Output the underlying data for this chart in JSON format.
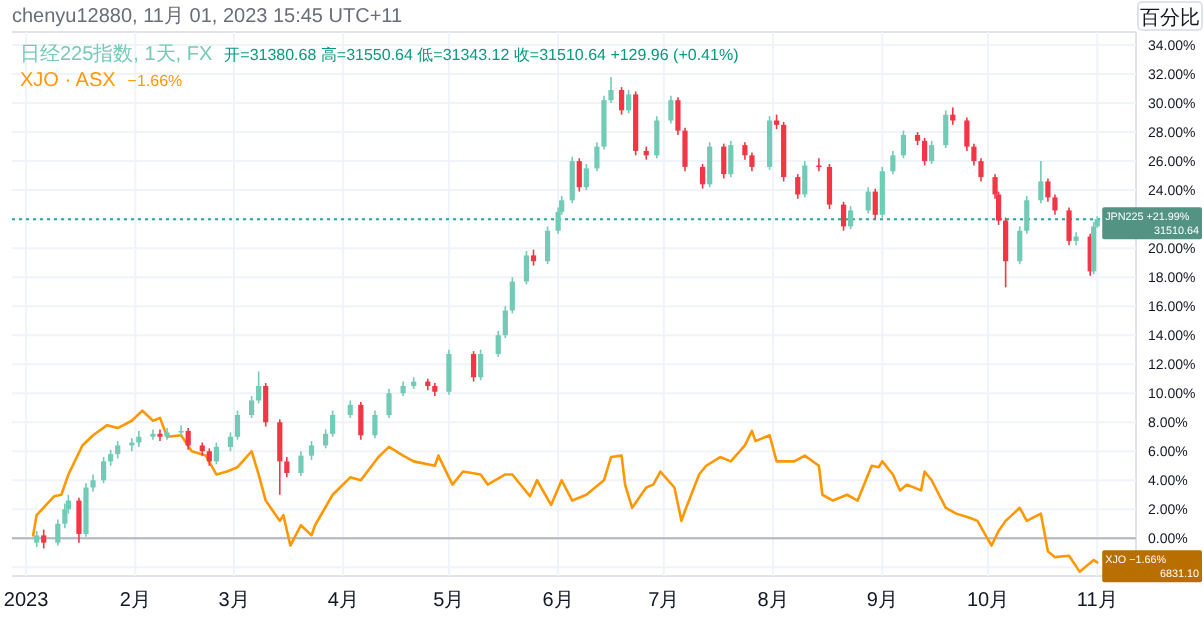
{
  "chart_data": {
    "type": "candlestick",
    "annotations": [
      "chenyu12880, 11月 01, 2023 15:45 UTC+11",
      "百分比",
      "开=31380.68 高=31550.64 低=31343.12 收=31510.64 +129.96 (+0.41%)",
      "−1.66%",
      {
        "text": "JPN225  +21.99%",
        "x": "2023-11-01",
        "y": 21.99
      },
      {
        "text": "XJO  −1.66%",
        "x": "2023-11-01",
        "y": -1.66
      },
      "31510.64",
      "6831.10"
    ],
    "xlim": [
      "2022-12-28",
      "2023-11-12"
    ],
    "xticks": [
      {
        "value": "2023-01-01",
        "label": "2023"
      },
      {
        "value": "2023-02-01",
        "label": "2月"
      },
      {
        "value": "2023-03-01",
        "label": "3月"
      },
      {
        "value": "2023-04-01",
        "label": "4月"
      },
      {
        "value": "2023-05-01",
        "label": "5月"
      },
      {
        "value": "2023-06-01",
        "label": "6月"
      },
      {
        "value": "2023-07-01",
        "label": "7月"
      },
      {
        "value": "2023-08-01",
        "label": "8月"
      },
      {
        "value": "2023-09-01",
        "label": "9月"
      },
      {
        "value": "2023-10-01",
        "label": "10月"
      },
      {
        "value": "2023-11-01",
        "label": "11月"
      }
    ],
    "ylim": [
      -2.6,
      34.9
    ],
    "yticks": [
      {
        "value": -2,
        "label": null
      },
      {
        "value": 0,
        "label": "0.00%"
      },
      {
        "value": 2,
        "label": "2.00%"
      },
      {
        "value": 4,
        "label": "4.00%"
      },
      {
        "value": 6,
        "label": "6.00%"
      },
      {
        "value": 8,
        "label": "8.00%"
      },
      {
        "value": 10,
        "label": "10.00%"
      },
      {
        "value": 12,
        "label": "12.00%"
      },
      {
        "value": 14,
        "label": "14.00%"
      },
      {
        "value": 16,
        "label": "16.00%"
      },
      {
        "value": 18,
        "label": "18.00%"
      },
      {
        "value": 20,
        "label": "20.00%"
      },
      {
        "value": 22,
        "label": null
      },
      {
        "value": 24,
        "label": "24.00%"
      },
      {
        "value": 26,
        "label": "26.00%"
      },
      {
        "value": 28,
        "label": "28.00%"
      },
      {
        "value": 30,
        "label": "30.00%"
      },
      {
        "value": 32,
        "label": "32.00%"
      },
      {
        "value": 34,
        "label": "34.00%"
      }
    ],
    "grid": true,
    "legend": "top left",
    "ref_lines": [
      {
        "axis": "y",
        "value": 21.99,
        "color": "#26a69a",
        "line_style": "dotted"
      },
      {
        "axis": "y",
        "value": 0,
        "color": "#b2b5be",
        "line_style": "solid"
      }
    ],
    "series": [
      {
        "name": "日经225指数, 1天, FX",
        "colors": [
          "#72cbb6",
          "#f23645",
          "#72cbb6",
          "#72cbb6",
          "#72cbb6",
          "#f23645",
          "#72cbb6",
          "#72cbb6",
          "#72cbb6",
          "#72cbb6",
          "#72cbb6",
          "#72cbb6",
          "#72cbb6",
          "#72cbb6",
          "#f23645",
          "#72cbb6",
          "#72cbb6",
          "#f23645",
          "#f23645",
          "#f23645",
          "#72cbb6",
          "#72cbb6",
          "#72cbb6",
          "#72cbb6",
          "#72cbb6",
          "#f23645",
          "#f23645",
          "#f23645",
          "#72cbb6",
          "#72cbb6",
          "#72cbb6",
          "#72cbb6",
          "#72cbb6",
          "#f23645",
          "#72cbb6",
          "#72cbb6",
          "#72cbb6",
          "#72cbb6",
          "#f23645",
          "#f23645",
          "#72cbb6",
          "#f23645",
          "#72cbb6",
          "#72cbb6",
          "#72cbb6",
          "#72cbb6",
          "#72cbb6",
          "#f23645",
          "#72cbb6",
          "#72cbb6",
          "#72cbb6",
          "#72cbb6",
          "#f23645",
          "#72cbb6",
          "#72cbb6",
          "#72cbb6",
          "#72cbb6",
          "#f23645",
          "#72cbb6",
          "#f23645",
          "#f23645",
          "#72cbb6",
          "#72cbb6",
          "#f23645",
          "#f23645",
          "#f23645",
          "#72cbb6",
          "#f23645",
          "#72cbb6",
          "#f23645",
          "#f23645",
          "#72cbb6",
          "#f23645",
          "#f23645",
          "#f23645",
          "#72cbb6",
          "#f23645",
          "#f23645",
          "#f23645",
          "#72cbb6",
          "#72cbb6",
          "#f23645",
          "#72cbb6",
          "#72cbb6",
          "#72cbb6",
          "#f23645",
          "#f23645",
          "#72cbb6",
          "#72cbb6",
          "#f23645",
          "#f23645",
          "#f23645",
          "#f23645",
          "#f23645",
          "#f23645",
          "#f23645",
          "#72cbb6",
          "#72cbb6",
          "#72cbb6",
          "#f23645",
          "#f23645",
          "#f23645",
          "#72cbb6",
          "#f23645",
          "#72cbb6",
          "#72cbb6"
        ],
        "x": [
          "2023-01-04",
          "2023-01-06",
          "2023-01-10",
          "2023-01-12",
          "2023-01-13",
          "2023-01-16",
          "2023-01-18",
          "2023-01-20",
          "2023-01-23",
          "2023-01-25",
          "2023-01-27",
          "2023-01-31",
          "2023-02-02",
          "2023-02-06",
          "2023-02-08",
          "2023-02-10",
          "2023-02-14",
          "2023-02-16",
          "2023-02-20",
          "2023-02-22",
          "2023-02-24",
          "2023-02-28",
          "2023-03-02",
          "2023-03-06",
          "2023-03-08",
          "2023-03-10",
          "2023-03-14",
          "2023-03-16",
          "2023-03-20",
          "2023-03-23",
          "2023-03-27",
          "2023-03-29",
          "2023-04-03",
          "2023-04-06",
          "2023-04-10",
          "2023-04-14",
          "2023-04-18",
          "2023-04-21",
          "2023-04-25",
          "2023-04-27",
          "2023-05-01",
          "2023-05-08",
          "2023-05-10",
          "2023-05-15",
          "2023-05-17",
          "2023-05-19",
          "2023-05-23",
          "2023-05-25",
          "2023-05-29",
          "2023-06-01",
          "2023-06-02",
          "2023-06-05",
          "2023-06-07",
          "2023-06-09",
          "2023-06-12",
          "2023-06-14",
          "2023-06-16",
          "2023-06-19",
          "2023-06-21",
          "2023-06-23",
          "2023-06-26",
          "2023-06-29",
          "2023-07-03",
          "2023-07-05",
          "2023-07-07",
          "2023-07-12",
          "2023-07-14",
          "2023-07-18",
          "2023-07-20",
          "2023-07-24",
          "2023-07-26",
          "2023-07-31",
          "2023-08-02",
          "2023-08-04",
          "2023-08-08",
          "2023-08-10",
          "2023-08-14",
          "2023-08-17",
          "2023-08-21",
          "2023-08-23",
          "2023-08-28",
          "2023-08-30",
          "2023-09-01",
          "2023-09-04",
          "2023-09-07",
          "2023-09-11",
          "2023-09-13",
          "2023-09-15",
          "2023-09-19",
          "2023-09-21",
          "2023-09-25",
          "2023-09-27",
          "2023-09-29",
          "2023-10-03",
          "2023-10-04",
          "2023-10-06",
          "2023-10-10",
          "2023-10-12",
          "2023-10-16",
          "2023-10-18",
          "2023-10-20",
          "2023-10-24",
          "2023-10-26",
          "2023-10-30",
          "2023-10-31",
          "2023-11-01"
        ],
        "ohlc": [
          [
            -0.3,
            0.5,
            -0.6,
            0.2
          ],
          [
            0.2,
            0.6,
            -0.7,
            -0.3
          ],
          [
            -0.3,
            1.3,
            -0.5,
            1.0
          ],
          [
            1.0,
            2.4,
            0.7,
            2.0
          ],
          [
            2.0,
            3.0,
            1.7,
            2.6
          ],
          [
            2.6,
            2.8,
            -0.3,
            0.3
          ],
          [
            0.3,
            3.8,
            0.1,
            3.5
          ],
          [
            3.5,
            4.4,
            3.2,
            4.0
          ],
          [
            4.0,
            5.6,
            3.8,
            5.3
          ],
          [
            5.3,
            6.1,
            5.0,
            5.8
          ],
          [
            5.8,
            6.7,
            5.5,
            6.4
          ],
          [
            6.4,
            6.9,
            6.0,
            6.6
          ],
          [
            6.6,
            7.4,
            6.3,
            7.0
          ],
          [
            7.0,
            7.5,
            6.8,
            7.2
          ],
          [
            7.2,
            7.5,
            6.7,
            7.0
          ],
          [
            7.0,
            7.6,
            6.8,
            7.3
          ],
          [
            7.3,
            7.8,
            7.0,
            7.4
          ],
          [
            7.4,
            7.6,
            6.1,
            6.4
          ],
          [
            6.4,
            6.6,
            5.7,
            6.0
          ],
          [
            6.0,
            6.2,
            5.0,
            5.3
          ],
          [
            5.3,
            6.6,
            5.1,
            6.3
          ],
          [
            6.3,
            7.3,
            6.0,
            7.0
          ],
          [
            7.0,
            8.8,
            6.8,
            8.5
          ],
          [
            8.5,
            9.8,
            8.3,
            9.5
          ],
          [
            9.5,
            11.5,
            9.3,
            10.5
          ],
          [
            10.5,
            10.7,
            7.7,
            8.0
          ],
          [
            8.0,
            8.2,
            3.0,
            5.3
          ],
          [
            5.3,
            5.6,
            4.2,
            4.5
          ],
          [
            4.5,
            6.0,
            4.3,
            5.7
          ],
          [
            5.7,
            6.7,
            5.4,
            6.4
          ],
          [
            6.4,
            7.5,
            6.2,
            7.2
          ],
          [
            7.2,
            8.8,
            7.0,
            8.5
          ],
          [
            8.5,
            9.5,
            8.3,
            9.2
          ],
          [
            9.2,
            9.4,
            6.8,
            7.1
          ],
          [
            7.1,
            8.8,
            6.9,
            8.5
          ],
          [
            8.5,
            10.3,
            8.3,
            10.0
          ],
          [
            10.0,
            10.8,
            9.8,
            10.5
          ],
          [
            10.5,
            11.1,
            10.3,
            10.8
          ],
          [
            10.8,
            11.0,
            10.2,
            10.5
          ],
          [
            10.5,
            10.7,
            9.8,
            10.1
          ],
          [
            10.1,
            13.0,
            9.9,
            12.7
          ],
          [
            12.7,
            12.9,
            10.8,
            11.1
          ],
          [
            11.1,
            13.0,
            10.9,
            12.7
          ],
          [
            12.7,
            14.3,
            12.5,
            14.0
          ],
          [
            14.0,
            16.0,
            13.8,
            15.7
          ],
          [
            15.7,
            18.0,
            15.5,
            17.7
          ],
          [
            17.7,
            19.8,
            17.5,
            19.5
          ],
          [
            19.5,
            19.9,
            18.8,
            19.1
          ],
          [
            19.1,
            21.5,
            18.9,
            21.2
          ],
          [
            21.2,
            22.8,
            21.0,
            22.5
          ],
          [
            22.5,
            23.6,
            22.3,
            23.3
          ],
          [
            23.3,
            26.3,
            23.1,
            26.0
          ],
          [
            26.0,
            26.2,
            23.9,
            24.2
          ],
          [
            24.2,
            25.8,
            24.0,
            25.5
          ],
          [
            25.5,
            27.3,
            25.3,
            27.0
          ],
          [
            27.0,
            30.5,
            26.8,
            30.2
          ],
          [
            30.2,
            31.8,
            30.0,
            30.9
          ],
          [
            30.9,
            31.1,
            29.2,
            29.5
          ],
          [
            29.5,
            30.9,
            29.3,
            30.6
          ],
          [
            30.6,
            30.8,
            26.4,
            26.7
          ],
          [
            26.7,
            27.0,
            26.1,
            26.4
          ],
          [
            26.4,
            29.1,
            26.2,
            28.8
          ],
          [
            28.8,
            30.5,
            28.6,
            30.2
          ],
          [
            30.2,
            30.4,
            27.8,
            28.1
          ],
          [
            28.1,
            28.3,
            25.3,
            25.6
          ],
          [
            25.6,
            25.8,
            24.1,
            24.4
          ],
          [
            24.4,
            27.3,
            24.2,
            27.0
          ],
          [
            27.0,
            27.2,
            24.8,
            25.1
          ],
          [
            25.1,
            27.4,
            24.9,
            27.1
          ],
          [
            27.1,
            27.3,
            26.1,
            26.4
          ],
          [
            26.4,
            26.6,
            25.3,
            25.6
          ],
          [
            25.6,
            29.1,
            25.4,
            28.8
          ],
          [
            28.8,
            29.2,
            28.2,
            28.5
          ],
          [
            28.5,
            28.7,
            24.6,
            24.9
          ],
          [
            24.9,
            25.1,
            23.4,
            23.7
          ],
          [
            23.7,
            26.0,
            23.5,
            25.7
          ],
          [
            25.7,
            26.2,
            25.3,
            25.6
          ],
          [
            25.6,
            25.8,
            22.7,
            23.0
          ],
          [
            23.0,
            23.2,
            21.2,
            21.5
          ],
          [
            21.5,
            22.9,
            21.3,
            22.6
          ],
          [
            22.6,
            24.2,
            22.4,
            23.9
          ],
          [
            23.9,
            24.1,
            22.0,
            22.3
          ],
          [
            22.3,
            25.6,
            22.1,
            25.3
          ],
          [
            25.3,
            26.7,
            25.1,
            26.4
          ],
          [
            26.4,
            28.1,
            26.2,
            27.8
          ],
          [
            27.8,
            28.0,
            27.1,
            27.4
          ],
          [
            27.4,
            27.6,
            25.7,
            26.0
          ],
          [
            26.0,
            27.4,
            25.8,
            27.1
          ],
          [
            27.1,
            29.5,
            26.9,
            29.2
          ],
          [
            29.2,
            29.7,
            28.5,
            28.8
          ],
          [
            28.8,
            29.0,
            26.7,
            27.0
          ],
          [
            27.0,
            27.2,
            25.7,
            26.0
          ],
          [
            26.0,
            26.2,
            24.6,
            24.9
          ],
          [
            24.9,
            25.1,
            23.4,
            23.7
          ],
          [
            23.7,
            23.9,
            21.6,
            21.9
          ],
          [
            21.9,
            22.1,
            17.3,
            19.1
          ],
          [
            19.1,
            21.5,
            18.9,
            21.2
          ],
          [
            21.2,
            23.6,
            21.0,
            23.3
          ],
          [
            23.3,
            26.0,
            23.1,
            24.6
          ],
          [
            24.6,
            24.8,
            23.2,
            23.5
          ],
          [
            23.5,
            23.7,
            22.3,
            22.6
          ],
          [
            22.6,
            22.8,
            20.2,
            20.5
          ],
          [
            20.5,
            21.1,
            20.2,
            20.8
          ],
          [
            20.8,
            21.0,
            18.1,
            18.4
          ],
          [
            18.4,
            21.8,
            18.2,
            21.5
          ],
          [
            21.5,
            22.2,
            21.4,
            21.99
          ]
        ]
      },
      {
        "name": "XJO · ASX",
        "type": "line",
        "color": "#ff9800",
        "x": [
          "2023-01-03",
          "2023-01-04",
          "2023-01-09",
          "2023-01-11",
          "2023-01-13",
          "2023-01-17",
          "2023-01-20",
          "2023-01-24",
          "2023-01-27",
          "2023-01-31",
          "2023-02-03",
          "2023-02-06",
          "2023-02-08",
          "2023-02-10",
          "2023-02-14",
          "2023-02-17",
          "2023-02-21",
          "2023-02-24",
          "2023-02-27",
          "2023-03-02",
          "2023-03-06",
          "2023-03-08",
          "2023-03-10",
          "2023-03-14",
          "2023-03-15",
          "2023-03-17",
          "2023-03-20",
          "2023-03-23",
          "2023-03-24",
          "2023-03-29",
          "2023-04-03",
          "2023-04-06",
          "2023-04-11",
          "2023-04-14",
          "2023-04-18",
          "2023-04-21",
          "2023-04-27",
          "2023-04-28",
          "2023-05-02",
          "2023-05-05",
          "2023-05-10",
          "2023-05-12",
          "2023-05-17",
          "2023-05-19",
          "2023-05-24",
          "2023-05-26",
          "2023-05-30",
          "2023-06-02",
          "2023-06-05",
          "2023-06-09",
          "2023-06-14",
          "2023-06-16",
          "2023-06-19",
          "2023-06-20",
          "2023-06-22",
          "2023-06-26",
          "2023-06-28",
          "2023-06-30",
          "2023-07-04",
          "2023-07-06",
          "2023-07-07",
          "2023-07-11",
          "2023-07-13",
          "2023-07-17",
          "2023-07-20",
          "2023-07-24",
          "2023-07-26",
          "2023-07-27",
          "2023-07-31",
          "2023-08-02",
          "2023-08-07",
          "2023-08-10",
          "2023-08-14",
          "2023-08-15",
          "2023-08-18",
          "2023-08-22",
          "2023-08-25",
          "2023-08-29",
          "2023-08-31",
          "2023-09-01",
          "2023-09-04",
          "2023-09-06",
          "2023-09-08",
          "2023-09-12",
          "2023-09-13",
          "2023-09-15",
          "2023-09-19",
          "2023-09-22",
          "2023-09-26",
          "2023-09-28",
          "2023-10-02",
          "2023-10-04",
          "2023-10-06",
          "2023-10-10",
          "2023-10-12",
          "2023-10-16",
          "2023-10-18",
          "2023-10-20",
          "2023-10-24",
          "2023-10-27",
          "2023-10-31",
          "2023-11-01"
        ],
        "values": [
          0.2,
          1.6,
          2.9,
          3.0,
          4.4,
          6.4,
          7.1,
          7.8,
          7.6,
          8.1,
          8.8,
          8.1,
          8.3,
          7.0,
          7.1,
          6.0,
          5.7,
          4.4,
          4.6,
          4.9,
          6.0,
          4.4,
          2.6,
          1.2,
          1.6,
          -0.5,
          0.9,
          0.2,
          0.9,
          3.0,
          4.2,
          4.0,
          5.6,
          6.3,
          5.7,
          5.3,
          5.0,
          5.7,
          3.7,
          4.6,
          4.4,
          3.7,
          4.4,
          4.4,
          2.9,
          4.0,
          2.3,
          4.0,
          2.6,
          3.0,
          4.0,
          5.6,
          5.7,
          3.7,
          2.1,
          3.5,
          3.7,
          4.6,
          3.5,
          1.2,
          1.9,
          4.4,
          5.0,
          5.6,
          5.3,
          6.4,
          7.4,
          6.7,
          7.1,
          5.3,
          5.3,
          5.7,
          5.0,
          3.0,
          2.6,
          3.0,
          2.6,
          5.0,
          4.9,
          5.3,
          4.4,
          3.3,
          3.7,
          3.3,
          4.6,
          4.0,
          2.1,
          1.7,
          1.4,
          1.2,
          -0.5,
          0.5,
          1.2,
          2.1,
          1.2,
          1.7,
          -0.9,
          -1.3,
          -1.2,
          -2.3,
          -1.5,
          -1.66
        ]
      }
    ]
  }
}
